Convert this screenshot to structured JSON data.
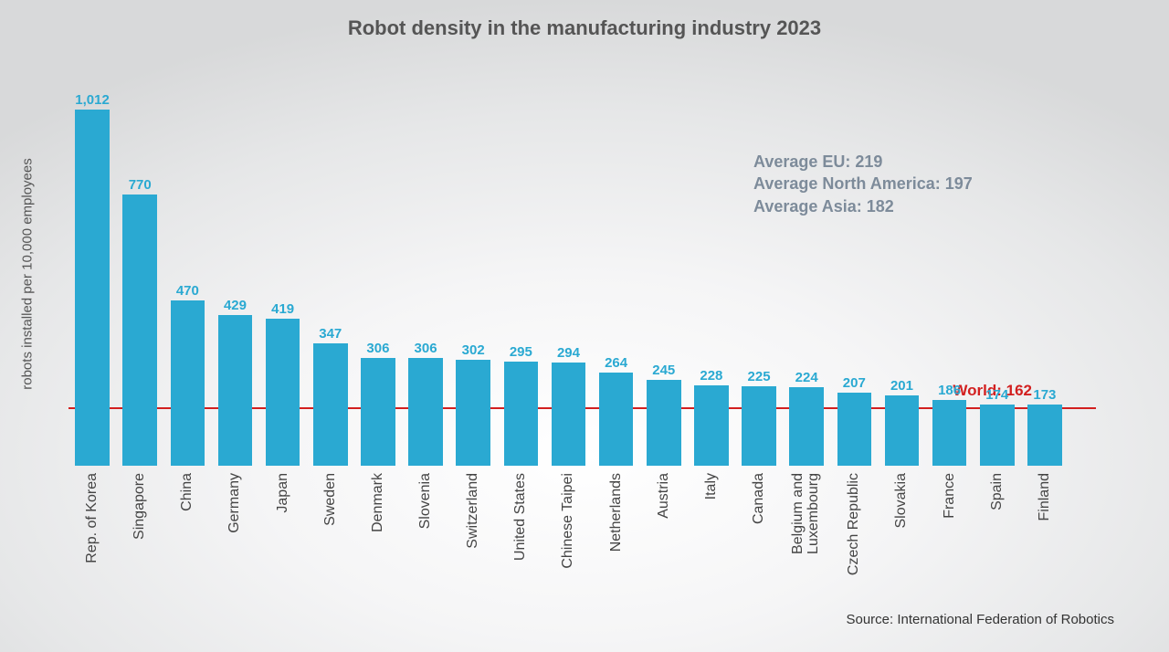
{
  "chart": {
    "type": "bar",
    "title": "Robot density in the manufacturing industry 2023",
    "title_fontsize": 22,
    "title_color": "#555555",
    "ylabel": "robots installed per 10,000 employees",
    "ylabel_fontsize": 15,
    "ylabel_color": "#555555",
    "y_max": 1012,
    "bar_color": "#2aa9d2",
    "bar_width_ratio": 0.72,
    "value_label_color": "#2aa9d2",
    "value_label_fontsize": 15,
    "category_label_color": "#444444",
    "category_label_fontsize": 16,
    "background": "radial-gradient",
    "bars": [
      {
        "label": "Rep. of Korea",
        "value": 1012,
        "display": "1,012"
      },
      {
        "label": "Singapore",
        "value": 770,
        "display": "770"
      },
      {
        "label": "China",
        "value": 470,
        "display": "470"
      },
      {
        "label": "Germany",
        "value": 429,
        "display": "429"
      },
      {
        "label": "Japan",
        "value": 419,
        "display": "419"
      },
      {
        "label": "Sweden",
        "value": 347,
        "display": "347"
      },
      {
        "label": "Denmark",
        "value": 306,
        "display": "306"
      },
      {
        "label": "Slovenia",
        "value": 306,
        "display": "306"
      },
      {
        "label": "Switzerland",
        "value": 302,
        "display": "302"
      },
      {
        "label": "United States",
        "value": 295,
        "display": "295"
      },
      {
        "label": "Chinese Taipei",
        "value": 294,
        "display": "294"
      },
      {
        "label": "Netherlands",
        "value": 264,
        "display": "264"
      },
      {
        "label": "Austria",
        "value": 245,
        "display": "245"
      },
      {
        "label": "Italy",
        "value": 228,
        "display": "228"
      },
      {
        "label": "Canada",
        "value": 225,
        "display": "225"
      },
      {
        "label": "Belgium and\nLuxembourg",
        "value": 224,
        "display": "224"
      },
      {
        "label": "Czech Republic",
        "value": 207,
        "display": "207"
      },
      {
        "label": "Slovakia",
        "value": 201,
        "display": "201"
      },
      {
        "label": "France",
        "value": 186,
        "display": "186"
      },
      {
        "label": "Spain",
        "value": 174,
        "display": "174"
      },
      {
        "label": "Finland",
        "value": 173,
        "display": "173"
      }
    ],
    "world_line": {
      "value": 162,
      "label": "World: 162",
      "color": "#d21f1f",
      "width": 2
    },
    "averages": [
      "Average EU: 219",
      "Average North America: 197",
      "Average Asia: 182"
    ],
    "averages_color": "#7d8b9a",
    "averages_fontsize": 18,
    "source": "Source: International Federation of Robotics",
    "source_color": "#333333",
    "source_fontsize": 15
  }
}
